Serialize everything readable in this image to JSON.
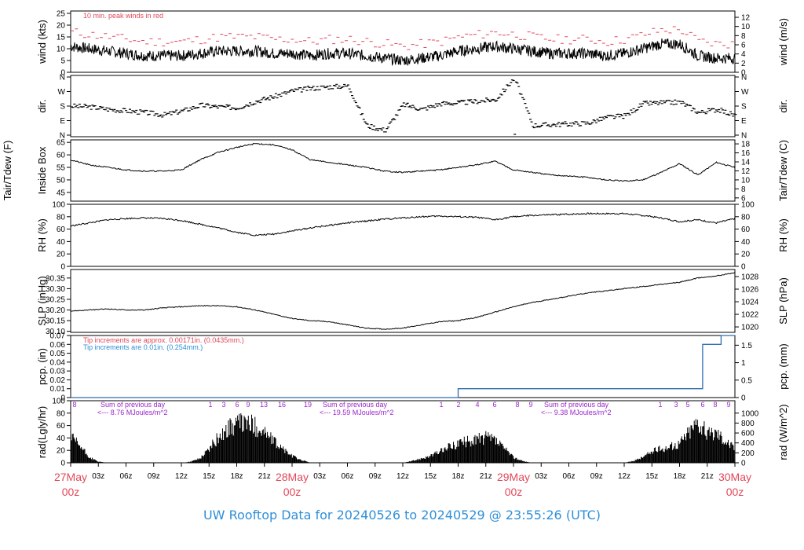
{
  "title": "UW Rooftop Data for 20240526  to  20240529 @ 23:55:26  (UTC)",
  "colors": {
    "title": "#2f8fd8",
    "date_labels": "#e0485a",
    "peak_wind": "#e0485a",
    "tip_note_1": "#e0485a",
    "tip_note_2": "#2f8fd8",
    "precip_line": "#2f6fb0",
    "rad_annotations": "#9b27c9",
    "trace": "#000000"
  },
  "x_axis": {
    "tick_labels": [
      "03z",
      "06z",
      "09z",
      "12z",
      "15z",
      "18z",
      "21z",
      "03z",
      "06z",
      "09z",
      "12z",
      "15z",
      "18z",
      "21z",
      "03z",
      "06z",
      "09z",
      "12z",
      "15z",
      "18z",
      "21z"
    ],
    "tick_hours": [
      3,
      6,
      9,
      12,
      15,
      18,
      21,
      27,
      30,
      33,
      36,
      39,
      42,
      45,
      51,
      54,
      57,
      60,
      63,
      66,
      69
    ],
    "date_labels": [
      {
        "day": "27May",
        "time": "00z",
        "hour": 0
      },
      {
        "day": "28May",
        "time": "00z",
        "hour": 24
      },
      {
        "day": "29May",
        "time": "00z",
        "hour": 48
      },
      {
        "day": "30May",
        "time": "00z",
        "hour": 72
      }
    ]
  },
  "chart_data": [
    {
      "type": "line",
      "ylabel_left": "wind (kts)",
      "ylabel_right": "wind (m/s)",
      "ylim": [
        0,
        26
      ],
      "yticks_left": [
        0,
        5,
        10,
        15,
        20,
        25
      ],
      "yticks_right": [
        0,
        2,
        4,
        6,
        8,
        10,
        12
      ],
      "annotation": "10 min. peak winds in red",
      "series": [
        {
          "x": [
            0,
            2,
            4,
            6,
            8,
            10,
            12,
            14,
            16,
            18,
            20,
            22,
            24,
            26,
            28,
            30,
            32,
            34,
            36,
            38,
            40,
            42,
            44,
            46,
            48,
            50,
            52,
            54,
            56,
            58,
            60,
            62,
            64,
            66,
            68,
            70,
            72
          ],
          "values": [
            11,
            10,
            9,
            8,
            7,
            7,
            7,
            8,
            9,
            9,
            9,
            8,
            8,
            7,
            8,
            8,
            7,
            6,
            5,
            6,
            7,
            9,
            10,
            11,
            10,
            9,
            8,
            8,
            8,
            7,
            8,
            10,
            12,
            12,
            7,
            6,
            6
          ]
        }
      ]
    },
    {
      "type": "scatter",
      "ylabel": "dir.",
      "yticks": [
        "N",
        "E",
        "S",
        "W",
        "N"
      ],
      "ylim_deg": [
        0,
        360
      ],
      "series": [
        {
          "x": [
            0,
            2,
            4,
            6,
            8,
            10,
            12,
            14,
            16,
            18,
            20,
            22,
            24,
            26,
            28,
            30,
            32,
            34,
            36,
            38,
            40,
            42,
            44,
            46,
            48,
            50,
            52,
            54,
            56,
            58,
            60,
            62,
            64,
            66,
            68,
            70,
            72
          ],
          "values": [
            180,
            175,
            160,
            150,
            140,
            125,
            150,
            185,
            175,
            170,
            210,
            240,
            275,
            290,
            300,
            305,
            60,
            30,
            190,
            160,
            195,
            200,
            210,
            220,
            355,
            60,
            65,
            70,
            75,
            110,
            120,
            195,
            200,
            205,
            140,
            160,
            120
          ]
        }
      ]
    },
    {
      "type": "line",
      "ylabel_left": "Tair/Tdew (F) Inside Box",
      "ylabel_right": "Tair/Tdew (C)",
      "ylim": [
        41.5,
        66
      ],
      "yticks_left": [
        45,
        50,
        55,
        60,
        65
      ],
      "yticks_right": [
        6,
        8,
        10,
        12,
        14,
        16,
        18
      ],
      "series": [
        {
          "x": [
            0,
            2,
            4,
            6,
            8,
            10,
            12,
            14,
            16,
            18,
            20,
            22,
            24,
            26,
            28,
            30,
            32,
            34,
            36,
            38,
            40,
            42,
            44,
            46,
            48,
            50,
            52,
            54,
            56,
            58,
            60,
            62,
            64,
            66,
            68,
            70,
            72
          ],
          "values": [
            58,
            56,
            55,
            54,
            53.5,
            53.5,
            54,
            58,
            61,
            63,
            64.5,
            64,
            62,
            58,
            57,
            56,
            55,
            53.5,
            53,
            53.5,
            54,
            55,
            56,
            57.5,
            54,
            53,
            52,
            51.5,
            51,
            50,
            49.5,
            50,
            53,
            56.5,
            52,
            57,
            55
          ]
        }
      ]
    },
    {
      "type": "line",
      "ylabel_left": "RH (%)",
      "ylabel_right": "RH (%)",
      "ylim": [
        0,
        100
      ],
      "yticks_left": [
        0,
        20,
        40,
        60,
        80,
        100
      ],
      "yticks_right": [
        0,
        20,
        40,
        60,
        80,
        100
      ],
      "series": [
        {
          "x": [
            0,
            2,
            4,
            6,
            8,
            10,
            12,
            14,
            16,
            18,
            20,
            22,
            24,
            26,
            28,
            30,
            32,
            34,
            36,
            38,
            40,
            42,
            44,
            46,
            48,
            50,
            52,
            54,
            56,
            58,
            60,
            62,
            64,
            66,
            68,
            70,
            72
          ],
          "values": [
            65,
            70,
            75,
            77,
            78,
            77,
            74,
            68,
            62,
            55,
            50,
            52,
            57,
            62,
            66,
            70,
            73,
            76,
            78,
            80,
            81,
            80,
            79,
            75,
            80,
            82,
            83,
            84,
            85,
            85,
            85,
            82,
            78,
            72,
            75,
            70,
            77
          ]
        }
      ]
    },
    {
      "type": "line",
      "ylabel_left": "SLP (inHg)",
      "ylabel_right": "SLP (hPa)",
      "ylim": [
        30.095,
        30.39
      ],
      "yticks_left": [
        30.1,
        30.15,
        30.2,
        30.25,
        30.3,
        30.35
      ],
      "yticks_right": [
        1020,
        1022,
        1024,
        1026,
        1028
      ],
      "series": [
        {
          "x": [
            0,
            2,
            4,
            6,
            8,
            10,
            12,
            14,
            16,
            18,
            20,
            22,
            24,
            26,
            28,
            30,
            32,
            34,
            36,
            38,
            40,
            42,
            44,
            46,
            48,
            50,
            52,
            54,
            56,
            58,
            60,
            62,
            64,
            66,
            68,
            70,
            72
          ],
          "values": [
            30.195,
            30.2,
            30.205,
            30.2,
            30.2,
            30.21,
            30.215,
            30.22,
            30.22,
            30.215,
            30.2,
            30.18,
            30.16,
            30.15,
            30.145,
            30.13,
            30.115,
            30.11,
            30.115,
            30.13,
            30.145,
            30.15,
            30.165,
            30.19,
            30.215,
            30.235,
            30.25,
            30.265,
            30.28,
            30.29,
            30.3,
            30.31,
            30.32,
            30.33,
            30.35,
            30.36,
            30.375
          ]
        }
      ]
    },
    {
      "type": "line",
      "ylabel_left": "pcp. (in)",
      "ylabel_right": "pcp. (mm)",
      "ylim": [
        0,
        0.07
      ],
      "yticks_left": [
        0.0,
        0.01,
        0.02,
        0.03,
        0.04,
        0.05,
        0.06,
        0.07
      ],
      "yticks_right": [
        0,
        0.5,
        1,
        1.5
      ],
      "annotation_1": "Tip increments are approx. 0.00171in. (0.0435mm.)",
      "annotation_2": "Tip increments are 0.01in. (0.254mm.)",
      "series": [
        {
          "x": [
            0,
            42,
            42,
            68.5,
            68.5,
            70.5,
            70.5,
            72
          ],
          "values": [
            0,
            0,
            0.01,
            0.01,
            0.06,
            0.06,
            0.07,
            0.07
          ]
        }
      ]
    },
    {
      "type": "bar",
      "ylabel_left": "rad(Lgly/hr)",
      "ylabel_right": "rad (W/m^2)",
      "ylim": [
        0,
        100
      ],
      "yticks_left": [
        0,
        20,
        40,
        60,
        80,
        100
      ],
      "yticks_right": [
        0,
        200,
        400,
        600,
        800,
        1000
      ],
      "sunrise_hours": [
        "8",
        "1",
        "3",
        "6",
        "9",
        "13",
        "16",
        "19",
        "1",
        "2",
        "4",
        "6",
        "8",
        "9",
        "1",
        "3",
        "5",
        "6",
        "8",
        "9"
      ],
      "summaries": [
        {
          "label": "Sum of previous day",
          "value": "<--- 8.76 MJoules/m^2"
        },
        {
          "label": "Sum of previous day",
          "value": "<--- 19.59 MJoules/m^2"
        },
        {
          "label": "Sum of previous day",
          "value": "<--- 9.38 MJoules/m^2"
        }
      ],
      "series": [
        {
          "x": [
            0,
            1,
            2,
            3,
            4,
            12,
            13,
            14,
            15,
            16,
            17,
            18,
            19,
            20,
            21,
            22,
            23,
            24,
            25,
            26,
            36,
            37,
            38,
            39,
            40,
            41,
            42,
            43,
            44,
            45,
            46,
            47,
            48,
            49,
            50,
            60,
            61,
            62,
            63,
            64,
            65,
            66,
            67,
            68,
            69,
            70,
            71,
            72
          ],
          "values": [
            45,
            30,
            10,
            2,
            0,
            0,
            2,
            8,
            25,
            45,
            60,
            70,
            72,
            65,
            55,
            38,
            25,
            12,
            5,
            0,
            0,
            3,
            8,
            12,
            20,
            28,
            35,
            38,
            42,
            45,
            40,
            25,
            10,
            3,
            0,
            0,
            3,
            10,
            20,
            25,
            28,
            35,
            55,
            75,
            50,
            55,
            40,
            25
          ]
        }
      ]
    }
  ]
}
